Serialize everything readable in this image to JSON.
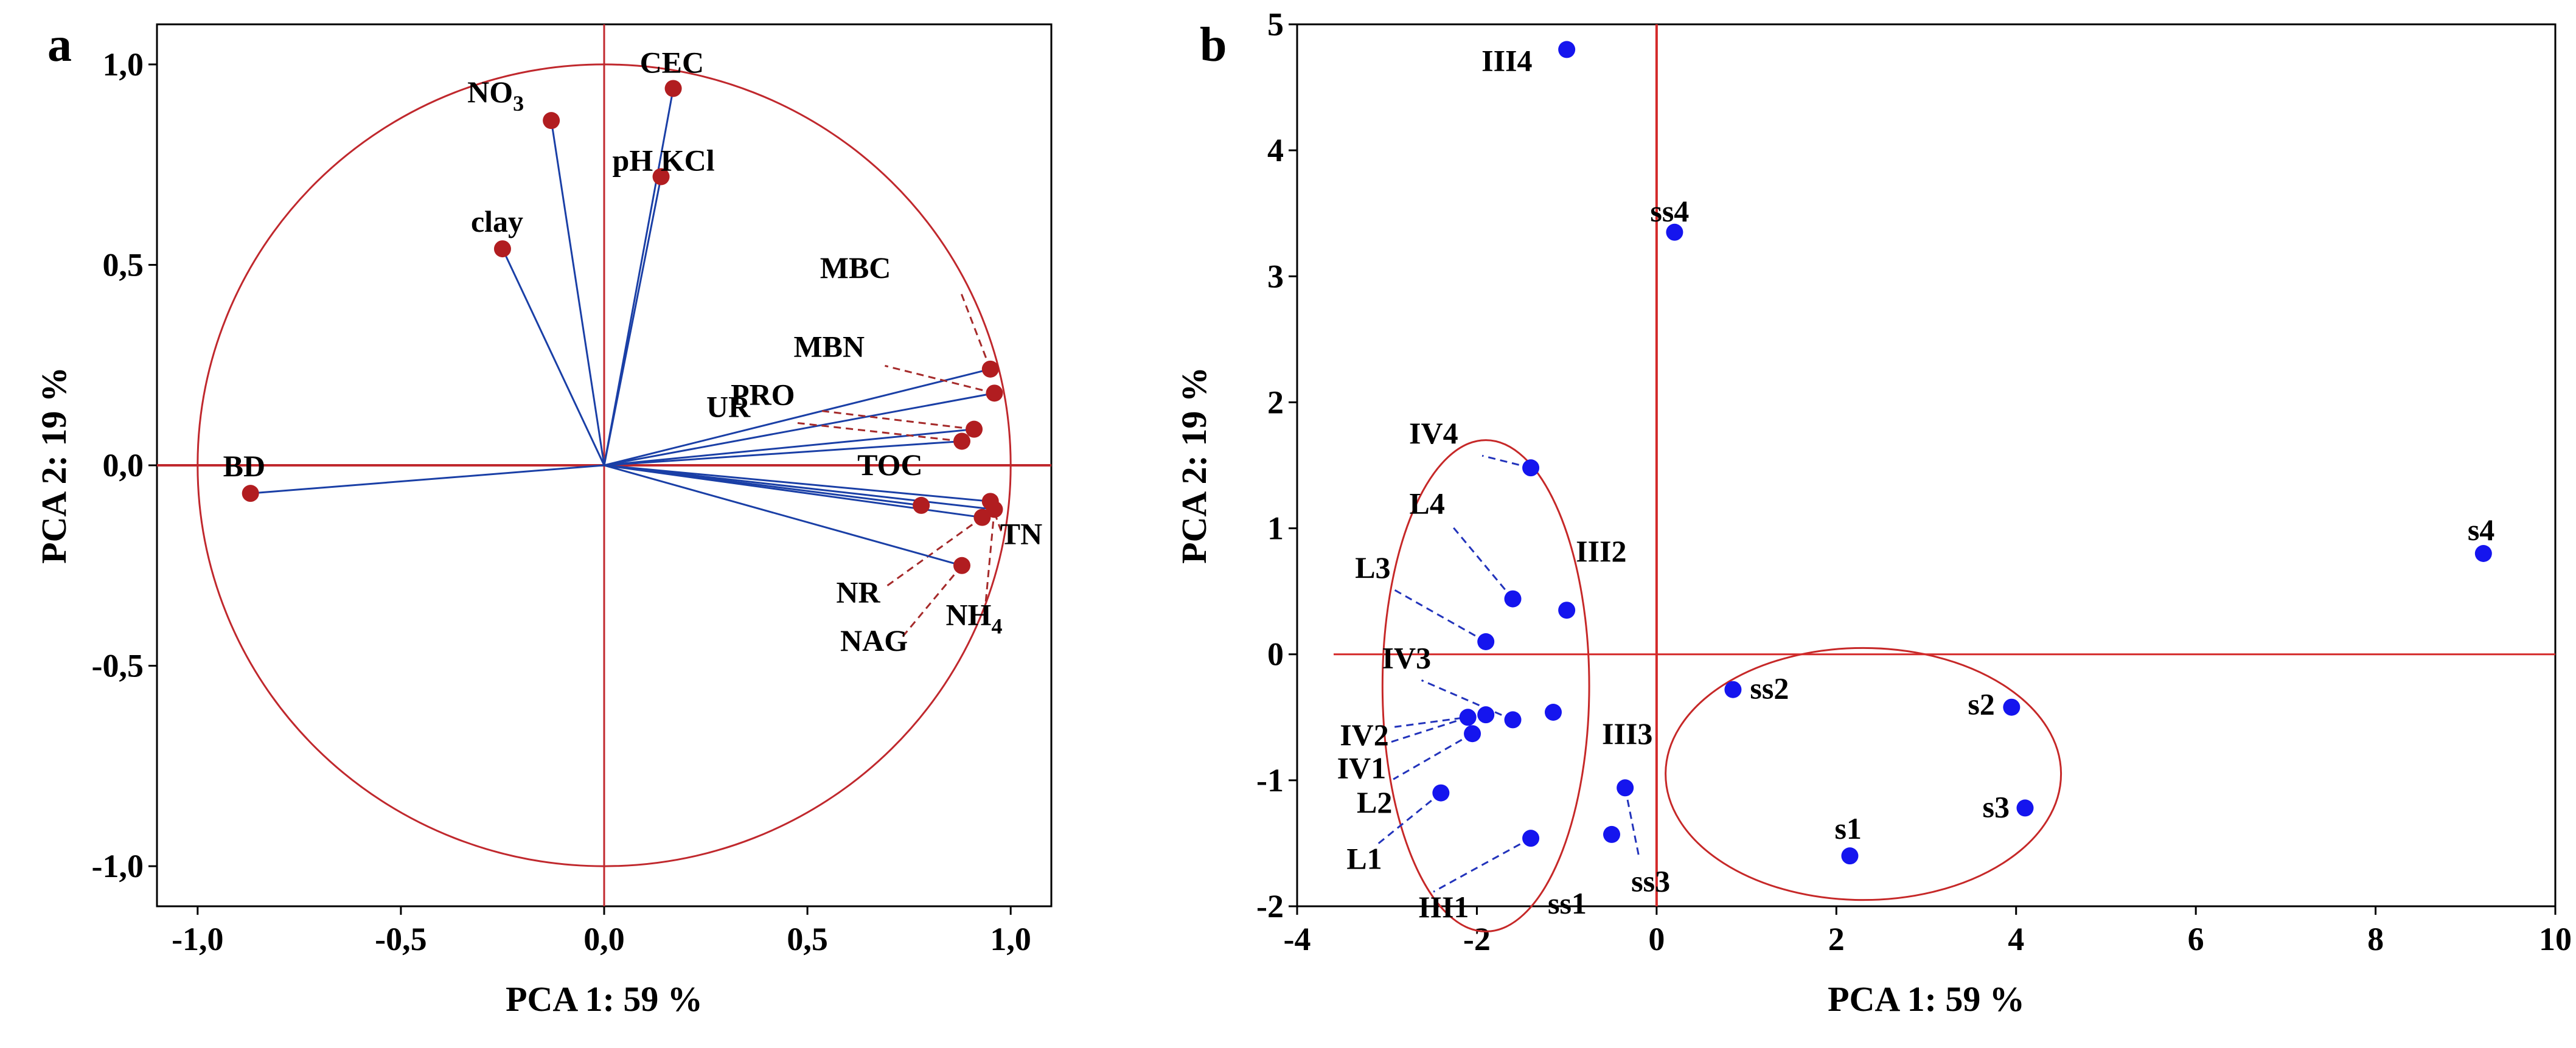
{
  "chart_data": [
    {
      "type": "scatter",
      "panel_label": "a",
      "subtype": "pca_loading_plot",
      "xlabel": "PCA 1: 59 %",
      "ylabel": "PCA 2: 19 %",
      "xlim": [
        -1.1,
        1.1
      ],
      "ylim": [
        -1.1,
        1.1
      ],
      "xticks": [
        -1.0,
        -0.5,
        0.0,
        0.5,
        1.0
      ],
      "yticks": [
        -1.0,
        -0.5,
        0.0,
        0.5,
        1.0
      ],
      "xtick_labels": [
        "-1,0",
        "-0,5",
        "0,0",
        "0,5",
        "1,0"
      ],
      "ytick_labels": [
        "-1,0",
        "-0,5",
        "0,0",
        "0,5",
        "1,0"
      ],
      "unit_circle": true,
      "colors": {
        "axis_lines": "#c0282d",
        "vectors": "#1a3fa6",
        "points": "#b11d20",
        "leaders": "#a52a2a"
      },
      "points": [
        {
          "label": "CEC",
          "x": 0.17,
          "y": 0.94
        },
        {
          "label": "NO",
          "sub": "3",
          "x": -0.13,
          "y": 0.86
        },
        {
          "label": "pH KCl",
          "x": 0.14,
          "y": 0.72
        },
        {
          "label": "clay",
          "x": -0.25,
          "y": 0.54
        },
        {
          "label": "MBC",
          "x": 0.95,
          "y": 0.24
        },
        {
          "label": "MBN",
          "x": 0.96,
          "y": 0.18
        },
        {
          "label": "PRO",
          "x": 0.91,
          "y": 0.09
        },
        {
          "label": "UR",
          "x": 0.88,
          "y": 0.06
        },
        {
          "label": "TN",
          "x": 0.95,
          "y": -0.09
        },
        {
          "label": "TOC",
          "x": 0.78,
          "y": -0.1
        },
        {
          "label": "NH",
          "sub": "4",
          "x": 0.96,
          "y": -0.11
        },
        {
          "label": "NR",
          "x": 0.93,
          "y": -0.13
        },
        {
          "label": "NAG",
          "x": 0.88,
          "y": -0.25
        },
        {
          "label": "BD",
          "x": -0.87,
          "y": -0.07
        }
      ]
    },
    {
      "type": "scatter",
      "panel_label": "b",
      "subtype": "pca_score_plot",
      "xlabel": "PCA 1: 59 %",
      "ylabel": "PCA 2: 19 %",
      "xlim": [
        -4,
        10
      ],
      "ylim": [
        -2,
        5
      ],
      "xticks": [
        -4,
        -2,
        0,
        2,
        4,
        6,
        8,
        10
      ],
      "yticks": [
        -2,
        -1,
        0,
        1,
        2,
        3,
        4,
        5
      ],
      "xtick_labels": [
        "-4",
        "-2",
        "0",
        "2",
        "4",
        "6",
        "8",
        "10"
      ],
      "ytick_labels": [
        "-2",
        "-1",
        "0",
        "1",
        "2",
        "3",
        "4",
        "5"
      ],
      "colors": {
        "axis_lines": "#d42a2a",
        "points": "#1515ee",
        "ellipses": "#c62828",
        "leaders": "#2233bb"
      },
      "ellipses": [
        {
          "cx": -1.9,
          "cy": -0.25,
          "rx": 1.15,
          "ry": 1.95
        },
        {
          "cx": 2.3,
          "cy": -0.95,
          "rx": 2.2,
          "ry": 1.0
        }
      ],
      "points": [
        {
          "label": "III4",
          "x": -1.0,
          "y": 4.8
        },
        {
          "label": "ss4",
          "x": 0.2,
          "y": 3.35
        },
        {
          "label": "s4",
          "x": 9.2,
          "y": 0.8
        },
        {
          "label": "IV4",
          "x": -1.4,
          "y": 1.48
        },
        {
          "label": "III2",
          "x": -1.0,
          "y": 0.35
        },
        {
          "label": "L4",
          "x": -1.6,
          "y": 0.44
        },
        {
          "label": "L3",
          "x": -1.9,
          "y": 0.1
        },
        {
          "label": "IV3",
          "x": -1.6,
          "y": -0.52
        },
        {
          "label": "IV2",
          "x": -1.9,
          "y": -0.48
        },
        {
          "label": "IV1",
          "x": -2.1,
          "y": -0.5
        },
        {
          "label": "L2",
          "x": -2.05,
          "y": -0.63
        },
        {
          "label": "III3",
          "x": -1.15,
          "y": -0.46
        },
        {
          "label": "L1",
          "x": -2.4,
          "y": -1.1
        },
        {
          "label": "III1",
          "x": -1.4,
          "y": -1.46
        },
        {
          "label": "ss1",
          "x": -0.5,
          "y": -1.43
        },
        {
          "label": "ss3",
          "x": -0.35,
          "y": -1.06
        },
        {
          "label": "ss2",
          "x": 0.85,
          "y": -0.28
        },
        {
          "label": "s2",
          "x": 3.95,
          "y": -0.42
        },
        {
          "label": "s3",
          "x": 4.1,
          "y": -1.22
        },
        {
          "label": "s1",
          "x": 2.15,
          "y": -1.6
        }
      ]
    }
  ]
}
